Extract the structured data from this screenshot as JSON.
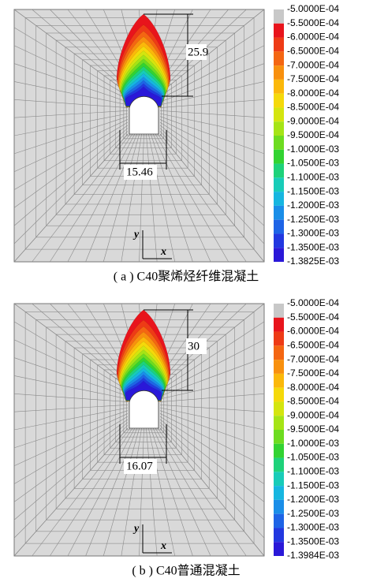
{
  "panels": [
    {
      "dimension_height": "25.9",
      "dimension_width": "15.46",
      "axis_y": "y",
      "axis_x": "x",
      "caption": "( a ) C40聚烯烃纤维混凝土",
      "legend_labels": [
        "-5.0000E-04",
        "-5.5000E-04",
        "-6.0000E-04",
        "-6.5000E-04",
        "-7.0000E-04",
        "-7.5000E-04",
        "-8.0000E-04",
        "-8.5000E-04",
        "-9.0000E-04",
        "-9.5000E-04",
        "-1.0000E-03",
        "-1.0500E-03",
        "-1.1000E-03",
        "-1.1500E-03",
        "-1.2000E-03",
        "-1.2500E-03",
        "-1.3000E-03",
        "-1.3500E-03",
        "-1.3825E-03"
      ]
    },
    {
      "dimension_height": "30",
      "dimension_width": "16.07",
      "axis_y": "y",
      "axis_x": "x",
      "caption": "( b ) C40普通混凝土",
      "legend_labels": [
        "-5.0000E-04",
        "-5.5000E-04",
        "-6.0000E-04",
        "-6.5000E-04",
        "-7.0000E-04",
        "-7.5000E-04",
        "-8.0000E-04",
        "-8.5000E-04",
        "-9.0000E-04",
        "-9.5000E-04",
        "-1.0000E-03",
        "-1.0500E-03",
        "-1.1000E-03",
        "-1.1500E-03",
        "-1.2000E-03",
        "-1.2500E-03",
        "-1.3000E-03",
        "-1.3500E-03",
        "-1.3984E-03"
      ]
    }
  ]
}
